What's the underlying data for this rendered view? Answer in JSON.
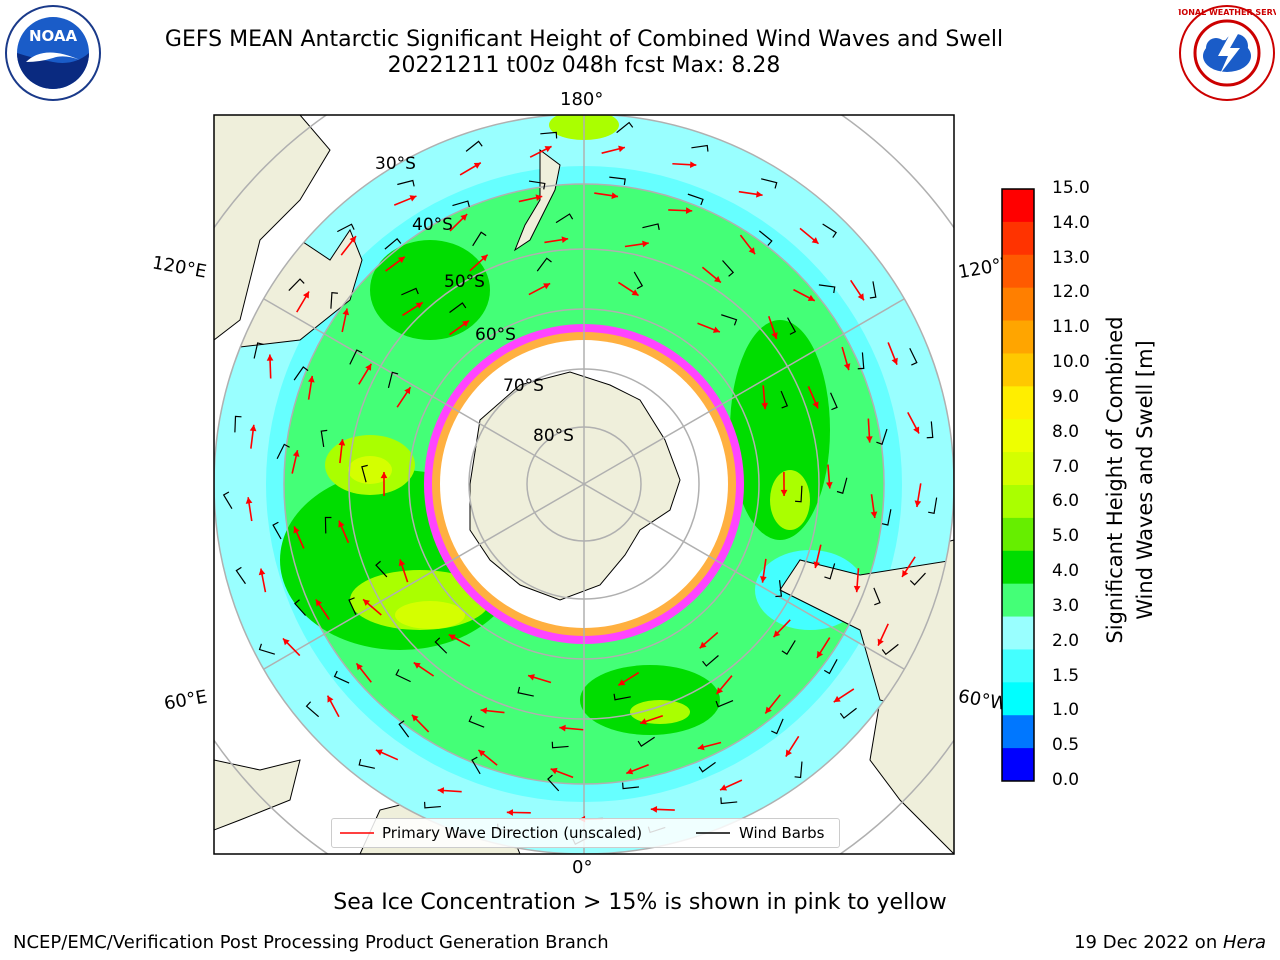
{
  "title": {
    "line1": "GEFS MEAN Antarctic Significant Height of Combined Wind Waves and Swell",
    "line2": "20221211 t00z 048h fcst   Max: 8.28"
  },
  "map": {
    "projection": "south-polar-stereographic",
    "longitude_labels": {
      "top": "180°",
      "bottom": "0°",
      "upper_left": "120°E",
      "upper_right": "120°W",
      "lower_left": "60°E",
      "lower_right": "60°W"
    },
    "latitude_labels": [
      "30°S",
      "40°S",
      "50°S",
      "60°S",
      "70°S",
      "80°S"
    ],
    "colors": {
      "land": "#efefdb",
      "sea_ice_core": "#ffffff",
      "sea_ice_edge": "#ff44ff",
      "wave_direction": "#ff0000",
      "wind_barb": "#000000",
      "graticule": "#b0b0b0"
    },
    "legend": {
      "wave_direction": "Primary Wave Direction (unscaled)",
      "wind_barbs": "Wind Barbs"
    }
  },
  "colorbar": {
    "label_line1": "Significant Height of Combined",
    "label_line2": "Wind Waves and Swell [m]",
    "ticks": [
      "15.0",
      "14.0",
      "13.0",
      "12.0",
      "11.0",
      "10.0",
      "9.0",
      "8.0",
      "7.0",
      "6.0",
      "5.0",
      "4.0",
      "3.0",
      "2.0",
      "1.5",
      "1.0",
      "0.5",
      "0.0"
    ],
    "colors_top_to_bottom": [
      "#ff0000",
      "#ff3300",
      "#ff5a00",
      "#ff7f00",
      "#ffa500",
      "#ffc800",
      "#ffee00",
      "#eeff00",
      "#d4ff00",
      "#aaff00",
      "#66ee00",
      "#00dd00",
      "#44ff77",
      "#99ffff",
      "#44ffff",
      "#00ffff",
      "#0077ff",
      "#0000ff"
    ]
  },
  "footnote": "Sea Ice Concentration > 15% is shown in pink to yellow",
  "credits": {
    "left": "NCEP/EMC/Verification Post Processing Product Generation Branch",
    "right_prefix": "19 Dec 2022 on ",
    "right_machine": "Hera"
  },
  "logos": {
    "noaa": "NOAA",
    "nws": "NATIONAL WEATHER SERVICE"
  }
}
